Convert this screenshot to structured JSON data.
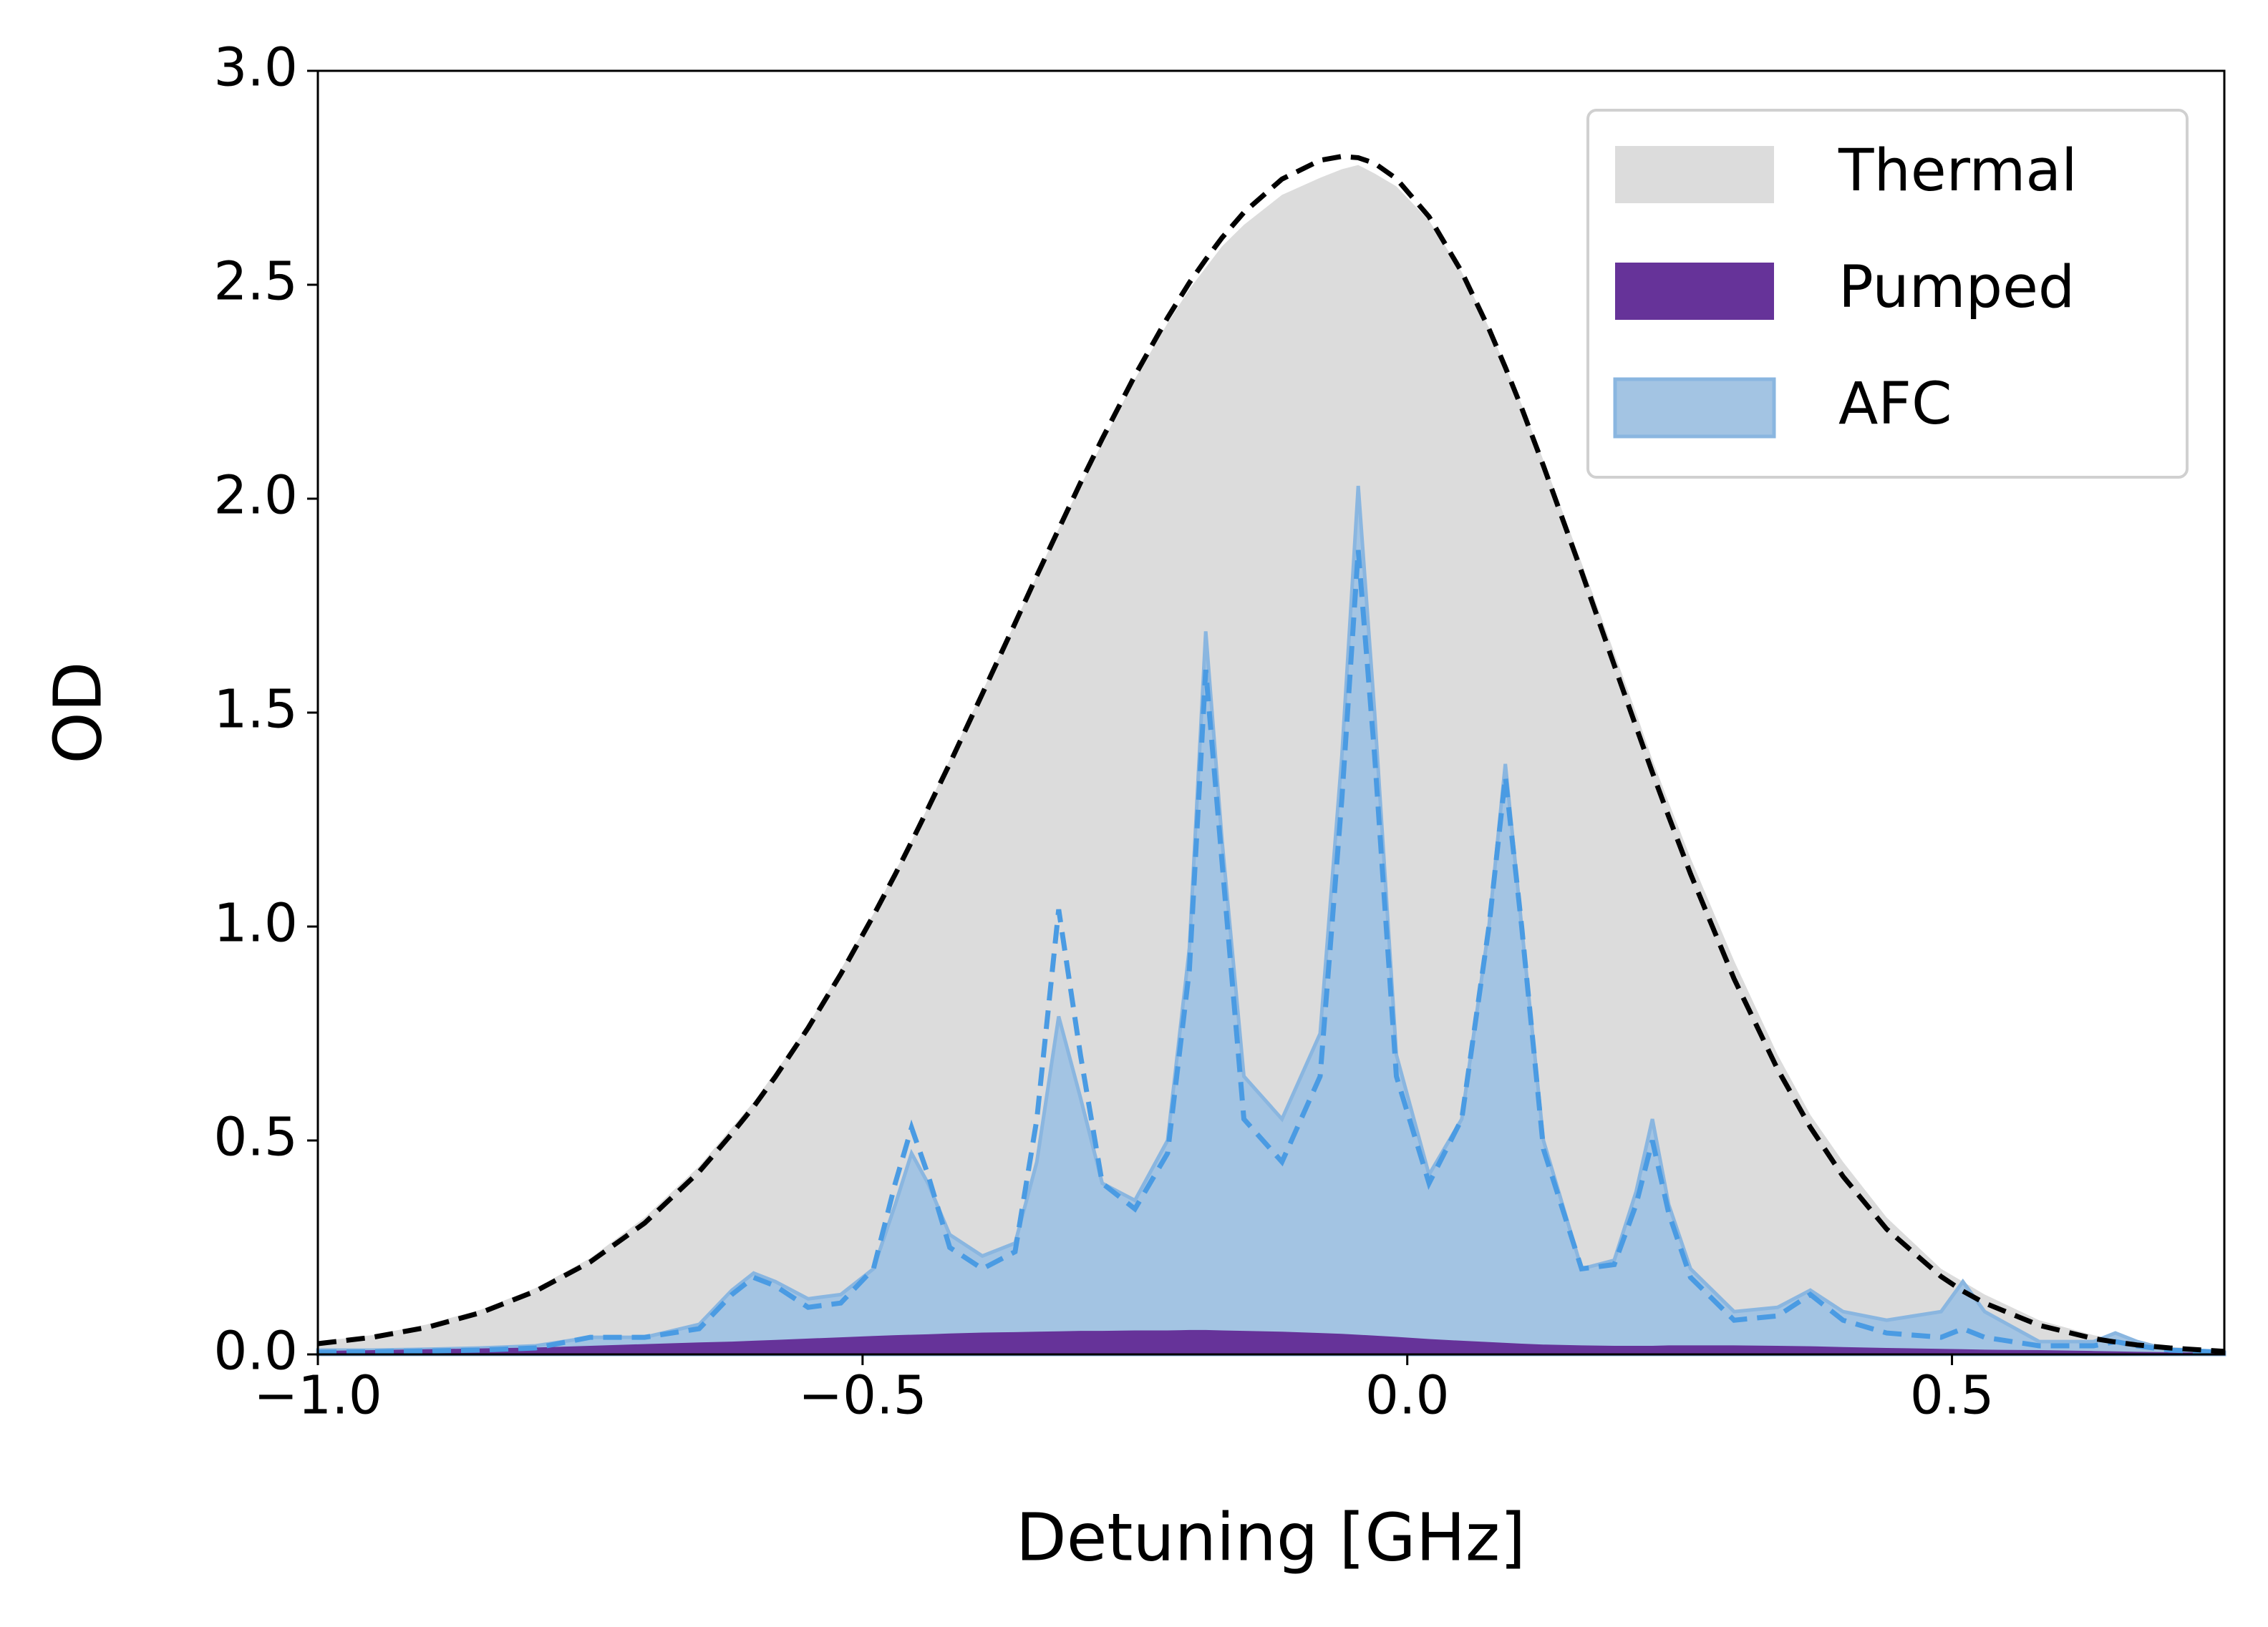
{
  "chart_data": {
    "type": "area",
    "xlabel": "Detuning [GHz]",
    "ylabel": "OD",
    "xlim": [
      -1.0,
      0.75
    ],
    "ylim": [
      0.0,
      3.0
    ],
    "xticks": [
      {
        "value": -1.0,
        "label": "−1.0"
      },
      {
        "value": -0.5,
        "label": "−0.5"
      },
      {
        "value": 0.0,
        "label": "0.0"
      },
      {
        "value": 0.5,
        "label": "0.5"
      }
    ],
    "yticks": [
      {
        "value": 0.0,
        "label": "0.0"
      },
      {
        "value": 0.5,
        "label": "0.5"
      },
      {
        "value": 1.0,
        "label": "1.0"
      },
      {
        "value": 1.5,
        "label": "1.5"
      },
      {
        "value": 2.0,
        "label": "2.0"
      },
      {
        "value": 2.5,
        "label": "2.5"
      },
      {
        "value": 3.0,
        "label": "3.0"
      }
    ],
    "legend": "upper right",
    "x": [
      -1.0,
      -0.95,
      -0.9,
      -0.85,
      -0.8,
      -0.75,
      -0.7,
      -0.65,
      -0.62,
      -0.6,
      -0.58,
      -0.55,
      -0.52,
      -0.49,
      -0.47,
      -0.455,
      -0.44,
      -0.42,
      -0.39,
      -0.36,
      -0.34,
      -0.32,
      -0.3,
      -0.28,
      -0.25,
      -0.22,
      -0.2,
      -0.185,
      -0.17,
      -0.15,
      -0.115,
      -0.08,
      -0.06,
      -0.045,
      -0.03,
      -0.01,
      0.02,
      0.05,
      0.075,
      0.09,
      0.105,
      0.125,
      0.16,
      0.19,
      0.21,
      0.225,
      0.24,
      0.26,
      0.3,
      0.34,
      0.37,
      0.4,
      0.44,
      0.49,
      0.51,
      0.53,
      0.58,
      0.63,
      0.65,
      0.67,
      0.7,
      0.75
    ],
    "series": [
      {
        "name": "Thermal",
        "style": "fill",
        "color": "#dcdcdc",
        "values": [
          0.03,
          0.045,
          0.07,
          0.105,
          0.155,
          0.225,
          0.32,
          0.44,
          0.53,
          0.59,
          0.66,
          0.77,
          0.9,
          1.03,
          1.13,
          1.2,
          1.28,
          1.39,
          1.55,
          1.71,
          1.82,
          1.93,
          2.03,
          2.13,
          2.28,
          2.41,
          2.49,
          2.54,
          2.59,
          2.64,
          2.71,
          2.75,
          2.77,
          2.78,
          2.76,
          2.73,
          2.65,
          2.53,
          2.4,
          2.31,
          2.22,
          2.09,
          1.85,
          1.64,
          1.5,
          1.39,
          1.29,
          1.16,
          0.92,
          0.7,
          0.56,
          0.45,
          0.32,
          0.2,
          0.17,
          0.14,
          0.08,
          0.045,
          0.035,
          0.028,
          0.018,
          0.01
        ]
      },
      {
        "name": "AFC",
        "style": "fill",
        "color": "#a3c4e3",
        "edge": "#8ab6e0",
        "values": [
          0.01,
          0.01,
          0.012,
          0.015,
          0.02,
          0.04,
          0.04,
          0.07,
          0.15,
          0.19,
          0.17,
          0.13,
          0.14,
          0.2,
          0.35,
          0.47,
          0.4,
          0.28,
          0.23,
          0.26,
          0.45,
          0.79,
          0.6,
          0.4,
          0.36,
          0.5,
          0.95,
          1.69,
          1.2,
          0.65,
          0.55,
          0.75,
          1.4,
          2.03,
          1.5,
          0.7,
          0.42,
          0.55,
          1.0,
          1.38,
          1.0,
          0.5,
          0.2,
          0.22,
          0.38,
          0.55,
          0.35,
          0.2,
          0.1,
          0.11,
          0.15,
          0.1,
          0.08,
          0.1,
          0.17,
          0.1,
          0.03,
          0.03,
          0.05,
          0.03,
          0.01,
          0.005
        ]
      },
      {
        "name": "Pumped",
        "style": "fill",
        "color": "#663399",
        "values": [
          0.008,
          0.01,
          0.012,
          0.014,
          0.016,
          0.02,
          0.024,
          0.028,
          0.03,
          0.032,
          0.034,
          0.037,
          0.04,
          0.043,
          0.045,
          0.046,
          0.047,
          0.049,
          0.051,
          0.052,
          0.053,
          0.054,
          0.055,
          0.055,
          0.056,
          0.056,
          0.057,
          0.057,
          0.056,
          0.055,
          0.053,
          0.05,
          0.048,
          0.046,
          0.044,
          0.041,
          0.036,
          0.032,
          0.029,
          0.027,
          0.025,
          0.023,
          0.021,
          0.02,
          0.02,
          0.02,
          0.021,
          0.021,
          0.021,
          0.02,
          0.019,
          0.017,
          0.015,
          0.013,
          0.012,
          0.011,
          0.01,
          0.008,
          0.007,
          0.006,
          0.005,
          0.004
        ]
      },
      {
        "style": "dashed",
        "color": "#4a9be3",
        "values": [
          0.005,
          0.006,
          0.008,
          0.01,
          0.015,
          0.04,
          0.04,
          0.06,
          0.14,
          0.18,
          0.16,
          0.11,
          0.12,
          0.2,
          0.4,
          0.53,
          0.42,
          0.25,
          0.2,
          0.24,
          0.55,
          1.04,
          0.7,
          0.4,
          0.34,
          0.47,
          0.9,
          1.6,
          1.15,
          0.55,
          0.45,
          0.65,
          1.3,
          1.88,
          1.4,
          0.65,
          0.4,
          0.55,
          1.0,
          1.35,
          1.0,
          0.48,
          0.2,
          0.21,
          0.35,
          0.5,
          0.33,
          0.18,
          0.08,
          0.09,
          0.14,
          0.08,
          0.05,
          0.04,
          0.06,
          0.04,
          0.02,
          0.02,
          0.03,
          0.02,
          0.01,
          0.005
        ]
      },
      {
        "style": "dashed",
        "color": "#000000",
        "values": [
          0.025,
          0.04,
          0.063,
          0.098,
          0.148,
          0.216,
          0.307,
          0.427,
          0.516,
          0.579,
          0.649,
          0.763,
          0.889,
          1.026,
          1.122,
          1.198,
          1.276,
          1.381,
          1.544,
          1.709,
          1.82,
          1.929,
          2.037,
          2.14,
          2.288,
          2.423,
          2.505,
          2.559,
          2.61,
          2.669,
          2.747,
          2.791,
          2.8,
          2.797,
          2.784,
          2.748,
          2.659,
          2.53,
          2.397,
          2.307,
          2.212,
          2.077,
          1.829,
          1.611,
          1.467,
          1.36,
          1.257,
          1.123,
          0.878,
          0.666,
          0.531,
          0.416,
          0.293,
          0.182,
          0.148,
          0.12,
          0.068,
          0.037,
          0.029,
          0.022,
          0.015,
          0.007
        ]
      }
    ]
  }
}
